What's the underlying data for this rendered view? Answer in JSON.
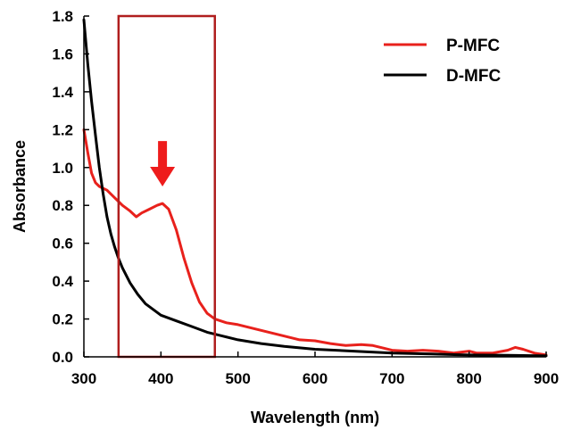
{
  "chart_data": {
    "type": "line",
    "xlabel": "Wavelength (nm)",
    "ylabel": "Absorbance",
    "xlim": [
      300,
      900
    ],
    "ylim": [
      0,
      1.8
    ],
    "xticks": [
      300,
      400,
      500,
      600,
      700,
      800,
      900
    ],
    "yticks": [
      0.0,
      0.2,
      0.4,
      0.6,
      0.8,
      1.0,
      1.2,
      1.4,
      1.6,
      1.8
    ],
    "ytick_labels": [
      "0.0",
      "0.2",
      "0.4",
      "0.6",
      "0.8",
      "1.0",
      "1.2",
      "1.4",
      "1.6",
      "1.8"
    ],
    "grid": false,
    "legend_position": "top-right",
    "series": [
      {
        "name": "P-MFC",
        "color": "#e8211c",
        "points": [
          [
            300,
            1.2
          ],
          [
            305,
            1.08
          ],
          [
            310,
            0.97
          ],
          [
            315,
            0.92
          ],
          [
            320,
            0.9
          ],
          [
            330,
            0.88
          ],
          [
            340,
            0.84
          ],
          [
            350,
            0.8
          ],
          [
            360,
            0.77
          ],
          [
            368,
            0.74
          ],
          [
            375,
            0.76
          ],
          [
            385,
            0.78
          ],
          [
            395,
            0.8
          ],
          [
            402,
            0.81
          ],
          [
            410,
            0.78
          ],
          [
            420,
            0.67
          ],
          [
            430,
            0.52
          ],
          [
            440,
            0.39
          ],
          [
            450,
            0.29
          ],
          [
            460,
            0.23
          ],
          [
            470,
            0.2
          ],
          [
            485,
            0.18
          ],
          [
            500,
            0.17
          ],
          [
            520,
            0.15
          ],
          [
            540,
            0.13
          ],
          [
            560,
            0.11
          ],
          [
            580,
            0.09
          ],
          [
            600,
            0.085
          ],
          [
            620,
            0.07
          ],
          [
            640,
            0.06
          ],
          [
            660,
            0.065
          ],
          [
            675,
            0.06
          ],
          [
            690,
            0.045
          ],
          [
            700,
            0.035
          ],
          [
            720,
            0.03
          ],
          [
            740,
            0.035
          ],
          [
            760,
            0.03
          ],
          [
            780,
            0.02
          ],
          [
            800,
            0.03
          ],
          [
            810,
            0.02
          ],
          [
            830,
            0.02
          ],
          [
            850,
            0.035
          ],
          [
            860,
            0.05
          ],
          [
            870,
            0.04
          ],
          [
            885,
            0.02
          ],
          [
            900,
            0.01
          ]
        ]
      },
      {
        "name": "D-MFC",
        "color": "#000000",
        "points": [
          [
            300,
            1.78
          ],
          [
            305,
            1.55
          ],
          [
            310,
            1.35
          ],
          [
            315,
            1.17
          ],
          [
            320,
            1.0
          ],
          [
            325,
            0.86
          ],
          [
            330,
            0.74
          ],
          [
            335,
            0.65
          ],
          [
            340,
            0.58
          ],
          [
            345,
            0.52
          ],
          [
            350,
            0.47
          ],
          [
            360,
            0.39
          ],
          [
            370,
            0.33
          ],
          [
            380,
            0.28
          ],
          [
            390,
            0.25
          ],
          [
            400,
            0.22
          ],
          [
            420,
            0.19
          ],
          [
            440,
            0.16
          ],
          [
            460,
            0.13
          ],
          [
            480,
            0.11
          ],
          [
            500,
            0.09
          ],
          [
            530,
            0.07
          ],
          [
            560,
            0.055
          ],
          [
            600,
            0.04
          ],
          [
            650,
            0.03
          ],
          [
            700,
            0.02
          ],
          [
            750,
            0.015
          ],
          [
            800,
            0.01
          ],
          [
            850,
            0.008
          ],
          [
            900,
            0.005
          ]
        ]
      }
    ],
    "annotations": {
      "highlight_box": {
        "x_range": [
          345,
          470
        ],
        "color": "#b01e1e"
      },
      "arrow": {
        "x": 402,
        "y_from": 1.14,
        "y_to": 0.9,
        "color": "#ee1c1c"
      }
    }
  }
}
